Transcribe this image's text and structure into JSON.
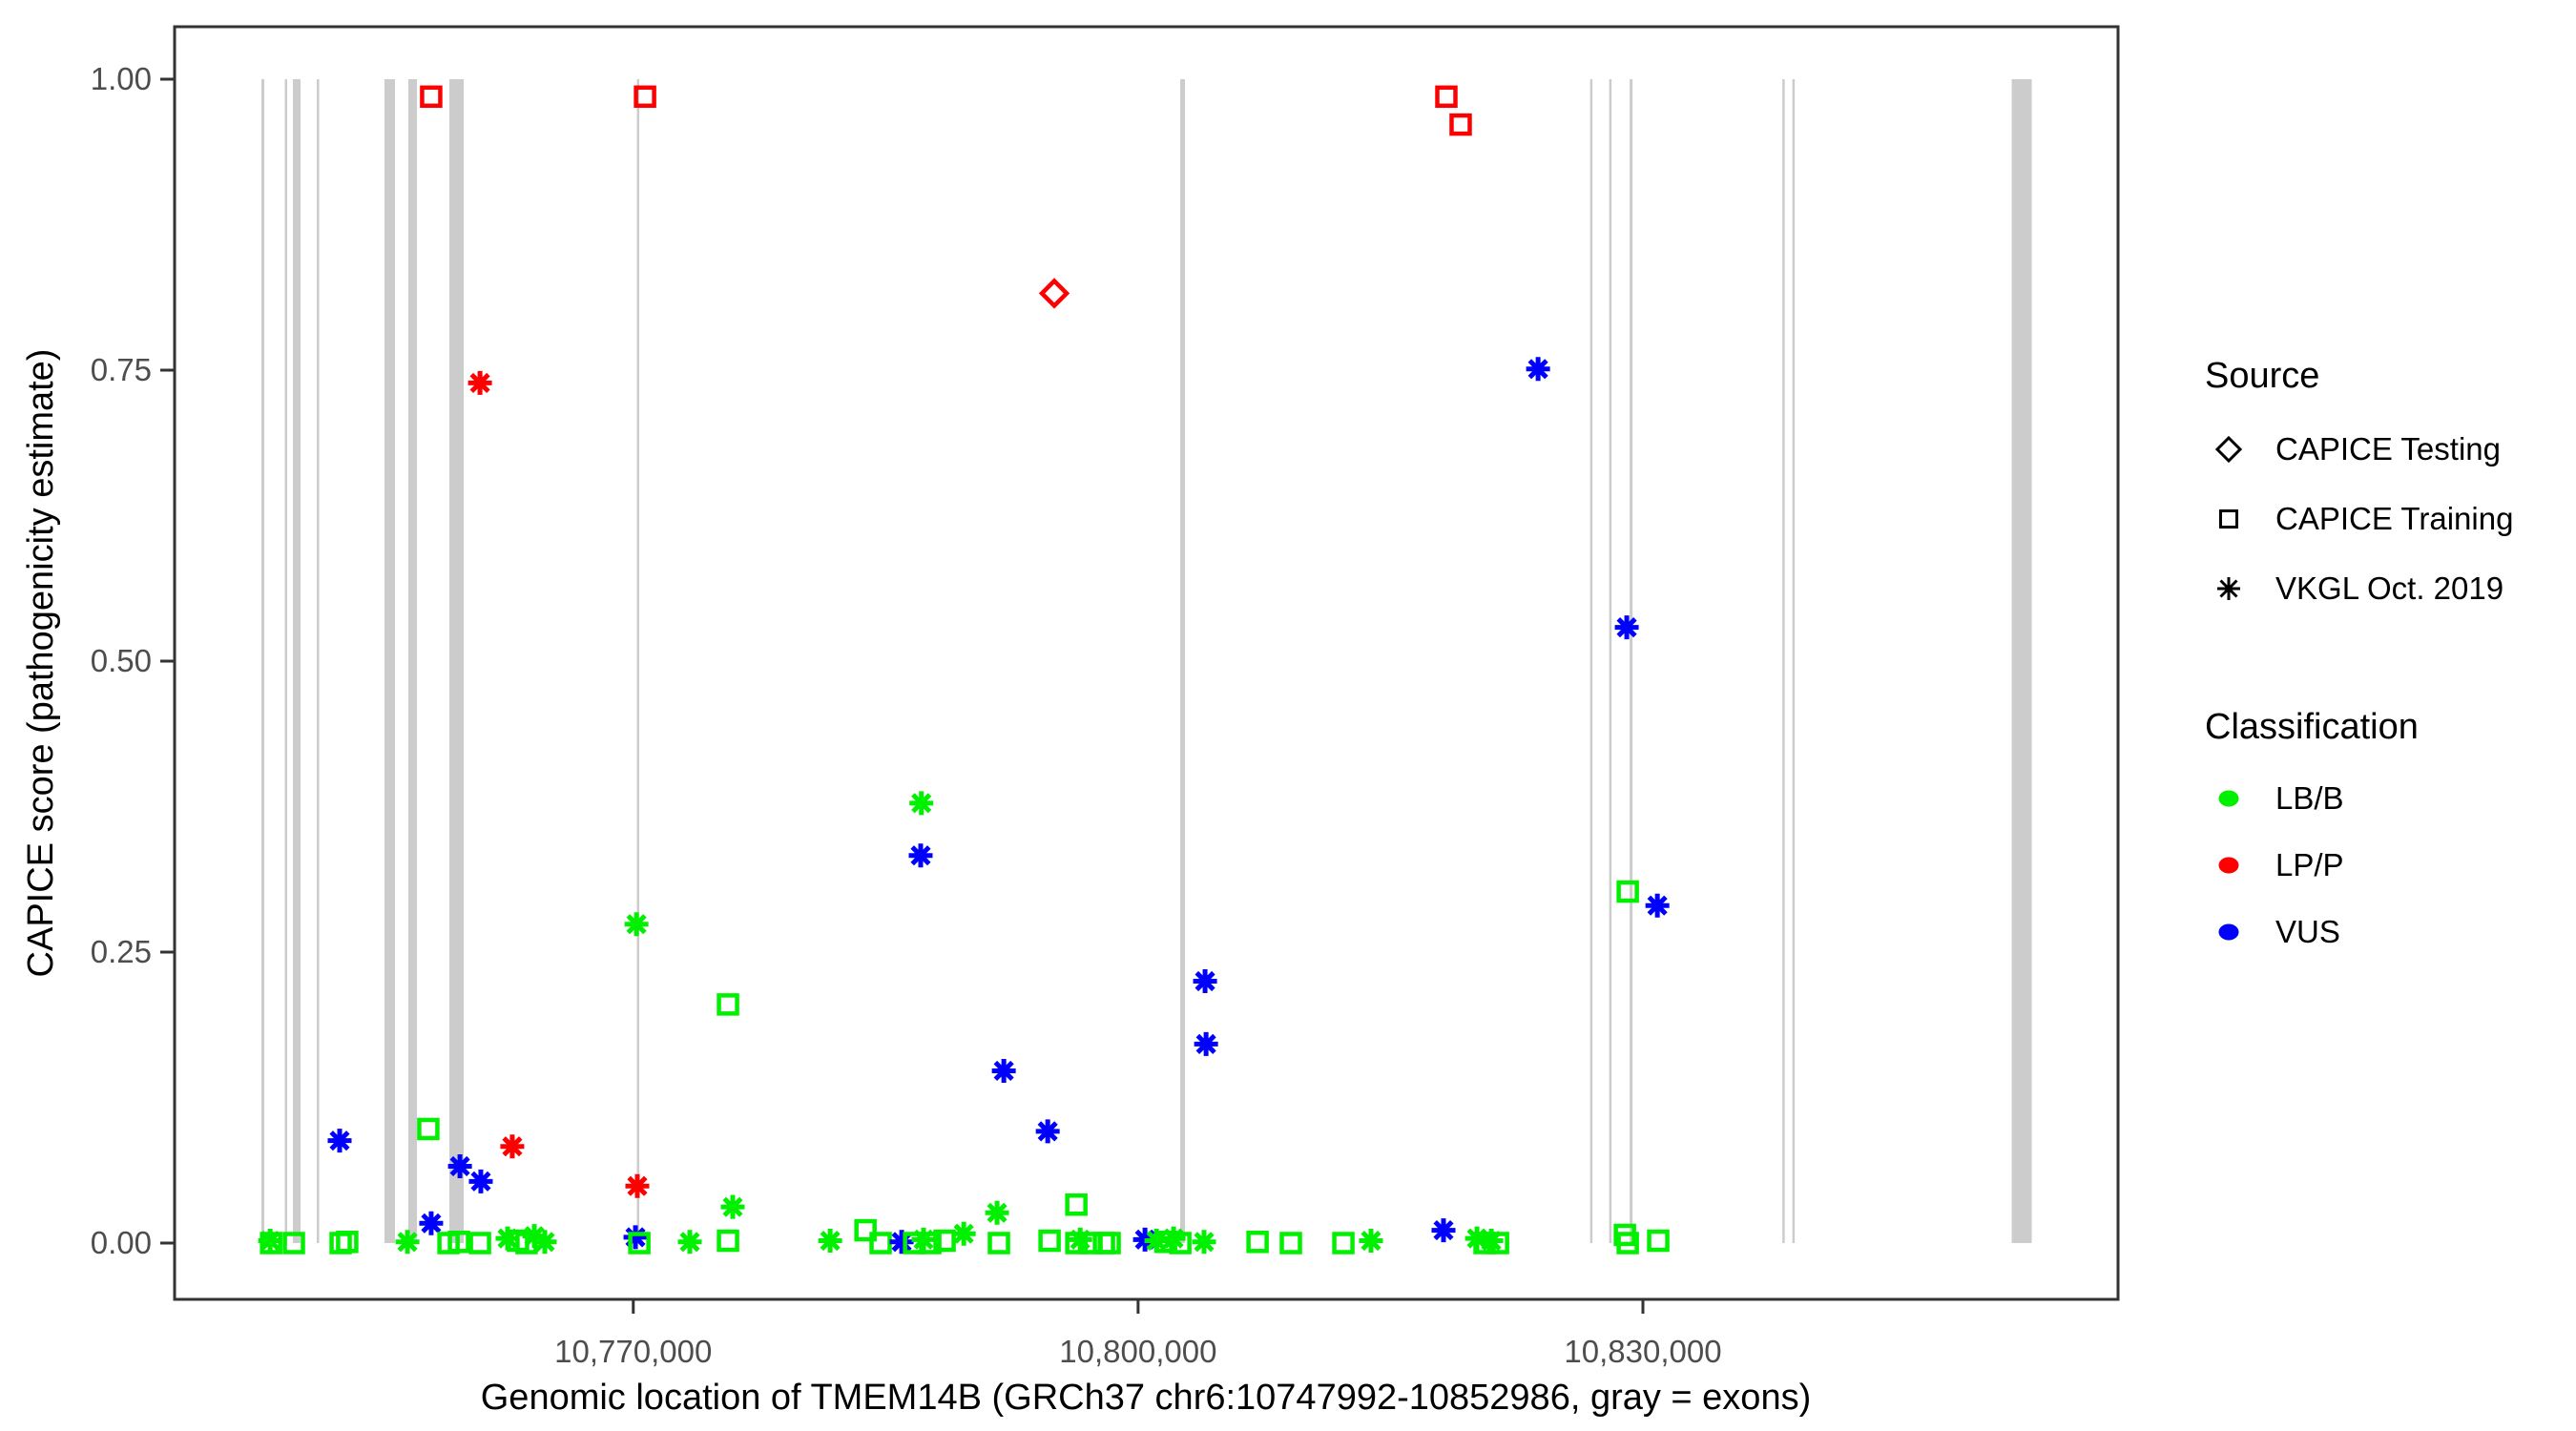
{
  "chart_data": {
    "type": "scatter",
    "x_axis": {
      "label": "Genomic location of TMEM14B (GRCh37 chr6:10747992-10852986, gray = exons)",
      "domain": [
        10742742,
        10858236
      ],
      "ticks": [
        {
          "value": 10770000,
          "label": "10,770,000"
        },
        {
          "value": 10800000,
          "label": "10,800,000"
        },
        {
          "value": 10830000,
          "label": "10,830,000"
        }
      ]
    },
    "y_axis": {
      "label": "CAPICE score (pathogenicity estimate)",
      "domain": [
        0,
        1
      ],
      "ticks": [
        {
          "value": 0.0,
          "label": "0.00"
        },
        {
          "value": 0.25,
          "label": "0.25"
        },
        {
          "value": 0.5,
          "label": "0.50"
        },
        {
          "value": 0.75,
          "label": "0.75"
        },
        {
          "value": 1.0,
          "label": "1.00"
        }
      ]
    },
    "legend": {
      "groups": [
        {
          "title": "Source",
          "items": [
            {
              "label": "CAPICE Testing",
              "marker": "diamond",
              "color": "#000000"
            },
            {
              "label": "CAPICE Training",
              "marker": "square",
              "color": "#000000"
            },
            {
              "label": "VKGL Oct. 2019",
              "marker": "asterisk",
              "color": "#000000"
            }
          ]
        },
        {
          "title": "Classification",
          "items": [
            {
              "label": "LB/B",
              "marker": "dot",
              "color": "#00F000"
            },
            {
              "label": "LP/P",
              "marker": "dot",
              "color": "#FF0000"
            },
            {
              "label": "VUS",
              "marker": "dot",
              "color": "#0000FF"
            }
          ]
        }
      ]
    },
    "colors": {
      "LB/B": "#00F000",
      "LP/P": "#FF0000",
      "VUS": "#0000FF",
      "exon": "#CCCCCC",
      "panel_border": "#333333",
      "tick_label": "#4d4d4d"
    },
    "source_markers": {
      "testing": "diamond",
      "training": "square",
      "vkgl": "asterisk"
    },
    "exons_note": "gray bars = exons, genomic start/end (bp)",
    "exons": [
      {
        "start": 10747902,
        "end": 10748072
      },
      {
        "start": 10749291,
        "end": 10749376
      },
      {
        "start": 10749773,
        "end": 10750227
      },
      {
        "start": 10751190,
        "end": 10751332
      },
      {
        "start": 10755216,
        "end": 10755840
      },
      {
        "start": 10756634,
        "end": 10757144
      },
      {
        "start": 10759072,
        "end": 10759923
      },
      {
        "start": 10770215,
        "end": 10770300
      },
      {
        "start": 10802504,
        "end": 10802787
      },
      {
        "start": 10826861,
        "end": 10826946
      },
      {
        "start": 10827995,
        "end": 10828108
      },
      {
        "start": 10829214,
        "end": 10829384
      },
      {
        "start": 10838286,
        "end": 10838399
      },
      {
        "start": 10838881,
        "end": 10838938
      },
      {
        "start": 10851918,
        "end": 10853109
      }
    ],
    "points_format": [
      "bp",
      "score",
      "source",
      "classification"
    ],
    "points": [
      [
        10748420,
        0.002,
        "vkgl",
        "LB/B"
      ],
      [
        10748480,
        0.0,
        "training",
        "LB/B"
      ],
      [
        10749830,
        0.0,
        "training",
        "LB/B"
      ],
      [
        10752610,
        0.0,
        "training",
        "LB/B"
      ],
      [
        10753000,
        0.001,
        "training",
        "LB/B"
      ],
      [
        10752550,
        0.088,
        "vkgl",
        "VUS"
      ],
      [
        10756580,
        0.001,
        "vkgl",
        "LB/B"
      ],
      [
        10757990,
        0.017,
        "vkgl",
        "VUS"
      ],
      [
        10757820,
        0.098,
        "training",
        "LB/B"
      ],
      [
        10757990,
        0.985,
        "training",
        "LP/P"
      ],
      [
        10759020,
        0.0,
        "training",
        "LB/B"
      ],
      [
        10759640,
        0.001,
        "training",
        "LB/B"
      ],
      [
        10759700,
        0.066,
        "vkgl",
        "VUS"
      ],
      [
        10760890,
        0.739,
        "vkgl",
        "LP/P"
      ],
      [
        10760940,
        0.053,
        "vkgl",
        "VUS"
      ],
      [
        10760890,
        0.0,
        "training",
        "LB/B"
      ],
      [
        10762810,
        0.083,
        "vkgl",
        "LP/P"
      ],
      [
        10762530,
        0.004,
        "vkgl",
        "LB/B"
      ],
      [
        10763150,
        0.002,
        "training",
        "LB/B"
      ],
      [
        10763660,
        0.0,
        "training",
        "LB/B"
      ],
      [
        10764120,
        0.006,
        "vkgl",
        "LB/B"
      ],
      [
        10764740,
        0.001,
        "vkgl",
        "LB/B"
      ],
      [
        10770130,
        0.005,
        "vkgl",
        "VUS"
      ],
      [
        10770360,
        0.0,
        "training",
        "LB/B"
      ],
      [
        10770190,
        0.274,
        "vkgl",
        "LB/B"
      ],
      [
        10770240,
        0.049,
        "vkgl",
        "LP/P"
      ],
      [
        10770700,
        0.985,
        "training",
        "LP/P"
      ],
      [
        10773360,
        0.001,
        "vkgl",
        "LB/B"
      ],
      [
        10775630,
        0.205,
        "training",
        "LB/B"
      ],
      [
        10775630,
        0.002,
        "training",
        "LB/B"
      ],
      [
        10775910,
        0.031,
        "vkgl",
        "LB/B"
      ],
      [
        10781700,
        0.002,
        "vkgl",
        "LB/B"
      ],
      [
        10783800,
        0.011,
        "training",
        "LB/B"
      ],
      [
        10784700,
        0.0,
        "training",
        "LB/B"
      ],
      [
        10785950,
        0.001,
        "vkgl",
        "VUS"
      ],
      [
        10786690,
        0.0,
        "training",
        "LB/B"
      ],
      [
        10787250,
        0.003,
        "vkgl",
        "LB/B"
      ],
      [
        10787650,
        0.0,
        "training",
        "LB/B"
      ],
      [
        10788500,
        0.002,
        "training",
        "LB/B"
      ],
      [
        10787120,
        0.378,
        "vkgl",
        "LB/B"
      ],
      [
        10787080,
        0.333,
        "vkgl",
        "VUS"
      ],
      [
        10789640,
        0.008,
        "vkgl",
        "LB/B"
      ],
      [
        10791620,
        0.026,
        "vkgl",
        "LB/B"
      ],
      [
        10791730,
        0.0,
        "training",
        "LB/B"
      ],
      [
        10792020,
        0.148,
        "vkgl",
        "VUS"
      ],
      [
        10794630,
        0.096,
        "vkgl",
        "VUS"
      ],
      [
        10795020,
        0.816,
        "testing",
        "LP/P"
      ],
      [
        10794740,
        0.002,
        "training",
        "LB/B"
      ],
      [
        10796330,
        0.033,
        "training",
        "LB/B"
      ],
      [
        10796330,
        0.0,
        "training",
        "LB/B"
      ],
      [
        10796560,
        0.003,
        "vkgl",
        "LB/B"
      ],
      [
        10797180,
        0.0,
        "training",
        "LB/B"
      ],
      [
        10797970,
        0.0,
        "training",
        "LB/B"
      ],
      [
        10798310,
        0.0,
        "training",
        "LB/B"
      ],
      [
        10800410,
        0.003,
        "vkgl",
        "VUS"
      ],
      [
        10801090,
        0.002,
        "vkgl",
        "LB/B"
      ],
      [
        10801660,
        0.001,
        "training",
        "LB/B"
      ],
      [
        10802110,
        0.004,
        "vkgl",
        "LB/B"
      ],
      [
        10802510,
        0.0,
        "training",
        "LB/B"
      ],
      [
        10803920,
        0.001,
        "vkgl",
        "LB/B"
      ],
      [
        10803980,
        0.225,
        "vkgl",
        "VUS"
      ],
      [
        10804040,
        0.171,
        "vkgl",
        "VUS"
      ],
      [
        10807100,
        0.001,
        "training",
        "LB/B"
      ],
      [
        10809080,
        0.0,
        "training",
        "LB/B"
      ],
      [
        10812200,
        0.0,
        "training",
        "LB/B"
      ],
      [
        10813840,
        0.002,
        "vkgl",
        "LB/B"
      ],
      [
        10818320,
        0.985,
        "training",
        "LP/P"
      ],
      [
        10819170,
        0.961,
        "training",
        "LP/P"
      ],
      [
        10818150,
        0.011,
        "vkgl",
        "VUS"
      ],
      [
        10820140,
        0.004,
        "vkgl",
        "LB/B"
      ],
      [
        10820590,
        0.0,
        "training",
        "LB/B"
      ],
      [
        10820990,
        0.002,
        "vkgl",
        "LB/B"
      ],
      [
        10821390,
        0.0,
        "training",
        "LB/B"
      ],
      [
        10823770,
        0.751,
        "vkgl",
        "VUS"
      ],
      [
        10829040,
        0.529,
        "vkgl",
        "VUS"
      ],
      [
        10829100,
        0.302,
        "training",
        "LB/B"
      ],
      [
        10830860,
        0.29,
        "vkgl",
        "VUS"
      ],
      [
        10828930,
        0.007,
        "training",
        "LB/B"
      ],
      [
        10829100,
        0.0,
        "training",
        "LB/B"
      ],
      [
        10830910,
        0.002,
        "training",
        "LB/B"
      ]
    ]
  }
}
